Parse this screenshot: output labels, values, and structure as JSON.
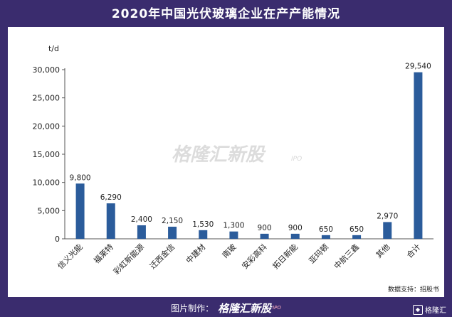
{
  "title": "2020年中国光伏玻璃企业在产产能情况",
  "chart_data": {
    "type": "bar",
    "title": "2020年中国光伏玻璃企业在产产能情况",
    "ylabel": "t/d",
    "xlabel": "",
    "ylim": [
      0,
      30000
    ],
    "yticks": [
      "0",
      "5,000",
      "10,000",
      "15,000",
      "20,000",
      "25,000",
      "30,000"
    ],
    "categories": [
      "信义光能",
      "福莱特",
      "彩虹新能源",
      "迁西金信",
      "中建材",
      "南玻",
      "安彩高科",
      "拓日新能",
      "亚玛顿",
      "中航三鑫",
      "其他",
      "合计"
    ],
    "values": [
      9800,
      6290,
      2400,
      2150,
      1530,
      1300,
      900,
      900,
      650,
      650,
      2970,
      29540
    ],
    "value_labels": [
      "9,800",
      "6,290",
      "2,400",
      "2,150",
      "1,530",
      "1,300",
      "900",
      "900",
      "650",
      "650",
      "2,970",
      "29,540"
    ],
    "bar_color": "#2b5c9b",
    "grid": false
  },
  "watermark": {
    "text": "格隆汇新股",
    "sub": "IPO"
  },
  "source": "数据支持：招股书",
  "footer": {
    "label": "图片制作：",
    "brand": "格隆汇新股",
    "sub": "IPO"
  },
  "corner_logo": {
    "text": "格隆汇"
  },
  "colors": {
    "background": "#3a2c6e",
    "panel": "#ffffff"
  }
}
